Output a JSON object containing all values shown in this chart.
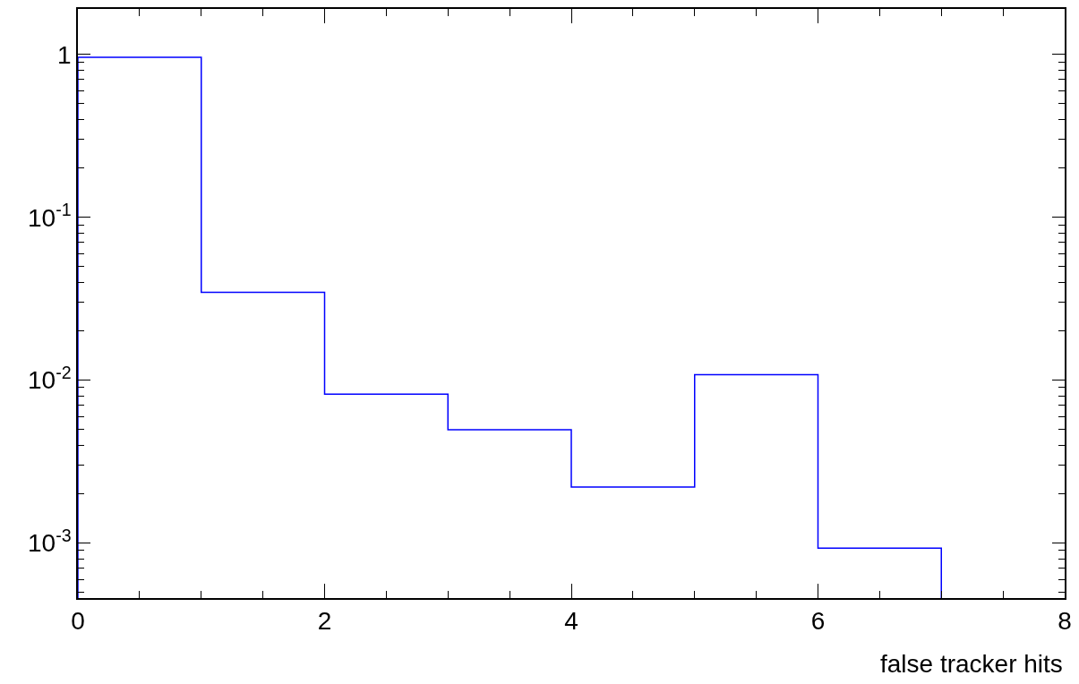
{
  "chart_data": {
    "type": "histogram",
    "xlabel": "false tracker hits",
    "bins": [
      0,
      1,
      2,
      3,
      4,
      5,
      6,
      7
    ],
    "values": [
      0.96,
      0.0346,
      0.0082,
      0.00497,
      0.00221,
      0.0108,
      0.00093
    ],
    "color": "#0000ff",
    "log": "y",
    "xlim": [
      0,
      8
    ],
    "xticks": [
      0,
      2,
      4,
      6,
      8
    ],
    "ylim": [
      0.00046,
      1.9
    ],
    "yticks": [
      {
        "value": 0.001,
        "label": "10$^{-3}$"
      },
      {
        "value": 0.01,
        "label": "10$^{-2}$"
      },
      {
        "value": 0.1,
        "label": "10$^{-1}$"
      },
      1
    ]
  }
}
